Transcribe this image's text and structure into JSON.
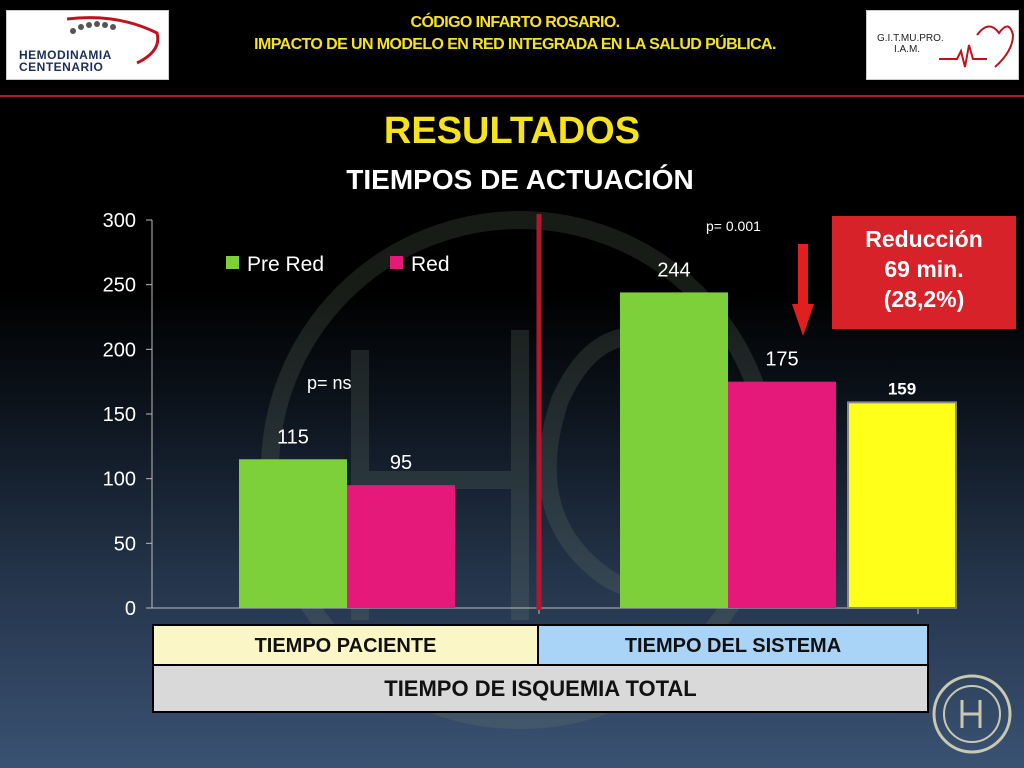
{
  "header": {
    "line1": "CÓDIGO INFARTO ROSARIO.",
    "line2": "IMPACTO DE UN MODELO EN RED INTEGRADA EN LA SALUD PÚBLICA.",
    "logo_left_line1": "HEMODINAMIA",
    "logo_left_line2": "CENTENARIO",
    "logo_right_line1": "G.I.T.MU.PRO.",
    "logo_right_line2": "I.A.M."
  },
  "titles": {
    "main": "RESULTADOS",
    "sub": "TIEMPOS DE ACTUACIÓN"
  },
  "reduction": {
    "line1": "Reducción",
    "line2": "69 min.",
    "line3": "(28,2%)"
  },
  "table": {
    "patient": "TIEMPO PACIENTE",
    "system": "TIEMPO DEL SISTEMA",
    "total": "TIEMPO DE ISQUEMIA TOTAL"
  },
  "colors": {
    "pre_red": "#7ed03a",
    "red": "#e4197a",
    "extra": "#ffff1a",
    "title_yellow": "#f7e31b",
    "reduction_bg": "#d82229",
    "divider": "#b0182e"
  },
  "chart_data": {
    "type": "bar",
    "ylim": [
      0,
      300
    ],
    "yticks": [
      "0",
      "50",
      "100",
      "150",
      "200",
      "250",
      "300"
    ],
    "legend": [
      "Pre Red",
      "Red"
    ],
    "legend_position": "top-left",
    "groups": [
      {
        "bars": [
          {
            "series": "Pre Red",
            "value": 115,
            "label": "115"
          },
          {
            "series": "Red",
            "value": 95,
            "label": "95"
          }
        ],
        "annotation": "p= ns"
      },
      {
        "bars": [
          {
            "series": "Pre Red",
            "value": 244,
            "label": "244"
          },
          {
            "series": "Red",
            "value": 175,
            "label": "175"
          },
          {
            "series": "extra",
            "value": 159,
            "label": "159"
          }
        ],
        "annotation": "p= 0.001"
      }
    ]
  }
}
